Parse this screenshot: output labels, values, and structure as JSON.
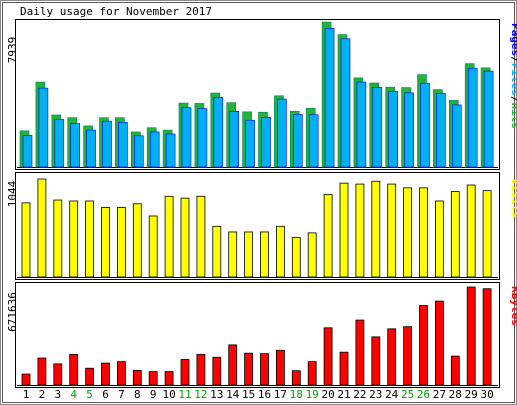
{
  "chart_data": {
    "title": "Daily usage for November 2017",
    "type": "bar",
    "days": [
      "1",
      "2",
      "3",
      "4",
      "5",
      "6",
      "7",
      "8",
      "9",
      "10",
      "11",
      "12",
      "13",
      "14",
      "15",
      "16",
      "17",
      "18",
      "19",
      "20",
      "21",
      "22",
      "23",
      "24",
      "25",
      "26",
      "27",
      "28",
      "29",
      "30"
    ],
    "weekend_days": [
      "4",
      "5",
      "11",
      "12",
      "18",
      "19",
      "25",
      "26"
    ],
    "colors": {
      "hits": "#00805c",
      "hits_face": "#22b33a",
      "files": "#00b0f0",
      "pages": "#0000ff",
      "visits": "#ffff00",
      "kbytes": "#ff0000",
      "weekday_label": "#000000",
      "weekend_label": "#00a000",
      "frame": "#000000",
      "panel_bg": "#ffffff"
    },
    "panels": [
      {
        "id": "hits",
        "max_label": "7939",
        "legend": [
          {
            "text": "Pages",
            "color": "#0000ff"
          },
          {
            "text": "/",
            "color": "#000000"
          },
          {
            "text": "Files",
            "color": "#00b0f0"
          },
          {
            "text": "/",
            "color": "#000000"
          },
          {
            "text": "Hits",
            "color": "#22b33a"
          }
        ],
        "max": 7939,
        "series": [
          {
            "name": "Hits",
            "values": [
              1980,
              4650,
              2850,
              2700,
              2250,
              2700,
              2700,
              1920,
              2150,
              2020,
              3500,
              3480,
              4050,
              3520,
              3020,
              3000,
              3900,
              3050,
              3220,
              7939,
              7250,
              4880,
              4600,
              4370,
              4350,
              5060,
              4240,
              3650,
              5660,
              5430
            ]
          },
          {
            "name": "Files",
            "values": [
              1730,
              4320,
              2600,
              2380,
              2020,
              2510,
              2450,
              1710,
              1920,
              1810,
              3250,
              3200,
              3810,
              3050,
              2560,
              2720,
              3720,
              2880,
              2860,
              7590,
              7020,
              4650,
              4360,
              4150,
              4060,
              4590,
              4030,
              3400,
              5410,
              5250
            ]
          }
        ]
      },
      {
        "id": "visits",
        "max_label": "1044",
        "legend": [
          {
            "text": "Visits",
            "color": "#ffff00"
          }
        ],
        "max": 1044,
        "series": [
          {
            "name": "Visits",
            "values": [
              790,
              1044,
              820,
              810,
              810,
              740,
              740,
              780,
              650,
              860,
              840,
              860,
              540,
              480,
              480,
              480,
              540,
              420,
              470,
              880,
              1000,
              990,
              1020,
              990,
              950,
              950,
              810,
              910,
              980,
              920
            ]
          }
        ]
      },
      {
        "id": "kbytes",
        "max_label": "671636",
        "legend": [
          {
            "text": "KBytes",
            "color": "#ff0000"
          }
        ],
        "max": 671636,
        "series": [
          {
            "name": "KBytes",
            "values": [
              75000,
              185000,
              145000,
              210000,
              115000,
              150000,
              160000,
              100000,
              92000,
              92000,
              175000,
              210000,
              190000,
              275000,
              218000,
              215000,
              238000,
              98000,
              160000,
              392000,
              225000,
              445000,
              330000,
              385000,
              400000,
              545000,
              575000,
              198000,
              671636,
              660000
            ]
          }
        ]
      }
    ]
  }
}
